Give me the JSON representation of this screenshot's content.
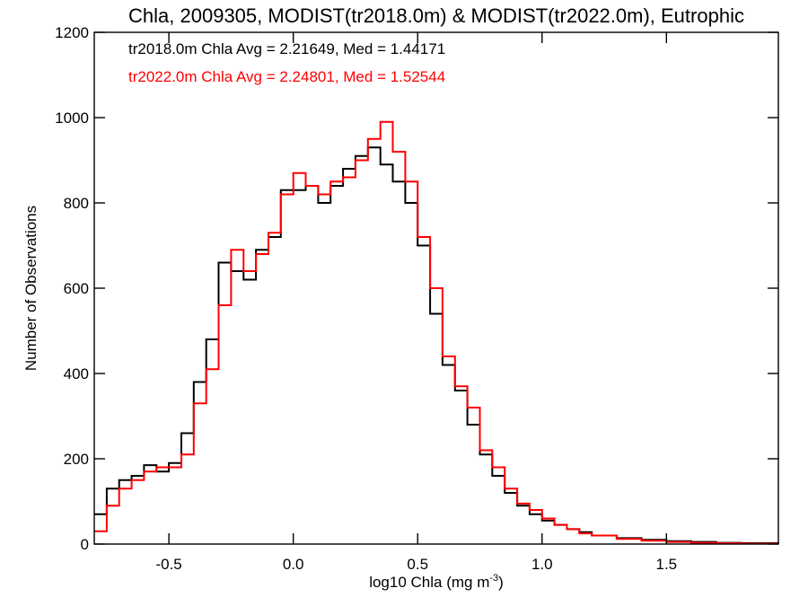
{
  "chart_data": {
    "type": "line",
    "title": "Chla, 2009305, MODIST(tr2018.0m) & MODIST(tr2022.0m), Eutrophic",
    "xlabel": "log10 Chla (mg m",
    "xlabel_sup": "-3",
    "xlabel_end": ")",
    "ylabel": "Number of Observations",
    "xlim": [
      -0.8,
      1.95
    ],
    "ylim": [
      0,
      1200
    ],
    "xticks": [
      "-0.5",
      "0.0",
      "0.5",
      "1.0",
      "1.5"
    ],
    "xtick_values": [
      -0.5,
      0.0,
      0.5,
      1.0,
      1.5
    ],
    "yticks": [
      "0",
      "200",
      "400",
      "600",
      "800",
      "1000",
      "1200"
    ],
    "ytick_values": [
      0,
      200,
      400,
      600,
      800,
      1000,
      1200
    ],
    "grid": false,
    "legend_position": "top-left",
    "annotations": [
      {
        "text": "tr2018.0m Chla Avg = 2.21649, Med = 1.44171",
        "color": "#000000"
      },
      {
        "text": "tr2022.0m Chla Avg = 2.24801, Med = 1.52544",
        "color": "#ff0000"
      }
    ],
    "series": [
      {
        "color": "#000000",
        "x": [
          -0.8,
          -0.75,
          -0.7,
          -0.65,
          -0.6,
          -0.55,
          -0.5,
          -0.45,
          -0.4,
          -0.35,
          -0.3,
          -0.25,
          -0.2,
          -0.15,
          -0.1,
          -0.05,
          0.0,
          0.05,
          0.1,
          0.15,
          0.2,
          0.25,
          0.3,
          0.35,
          0.4,
          0.45,
          0.5,
          0.55,
          0.6,
          0.65,
          0.7,
          0.75,
          0.8,
          0.85,
          0.9,
          0.95,
          1.0,
          1.05,
          1.1,
          1.15,
          1.2,
          1.3,
          1.4,
          1.5,
          1.6,
          1.7,
          1.8,
          1.95
        ],
        "y": [
          70,
          130,
          150,
          160,
          185,
          170,
          190,
          260,
          380,
          480,
          660,
          640,
          620,
          690,
          720,
          830,
          830,
          840,
          800,
          840,
          880,
          910,
          930,
          890,
          850,
          800,
          700,
          540,
          420,
          360,
          280,
          210,
          160,
          120,
          90,
          70,
          55,
          45,
          35,
          28,
          20,
          14,
          10,
          7,
          5,
          3,
          2,
          1
        ]
      },
      {
        "color": "#ff0000",
        "x": [
          -0.8,
          -0.75,
          -0.7,
          -0.65,
          -0.6,
          -0.55,
          -0.5,
          -0.45,
          -0.4,
          -0.35,
          -0.3,
          -0.25,
          -0.2,
          -0.15,
          -0.1,
          -0.05,
          0.0,
          0.05,
          0.1,
          0.15,
          0.2,
          0.25,
          0.3,
          0.35,
          0.4,
          0.45,
          0.5,
          0.55,
          0.6,
          0.65,
          0.7,
          0.75,
          0.8,
          0.85,
          0.9,
          0.95,
          1.0,
          1.05,
          1.1,
          1.15,
          1.2,
          1.3,
          1.4,
          1.5,
          1.6,
          1.7,
          1.8,
          1.95
        ],
        "y": [
          30,
          90,
          130,
          150,
          170,
          180,
          180,
          210,
          330,
          410,
          560,
          690,
          640,
          680,
          730,
          820,
          870,
          840,
          820,
          850,
          860,
          900,
          950,
          990,
          920,
          850,
          720,
          600,
          440,
          370,
          320,
          220,
          180,
          130,
          95,
          80,
          60,
          45,
          35,
          25,
          20,
          12,
          8,
          5,
          3,
          2,
          1,
          1
        ]
      }
    ]
  }
}
